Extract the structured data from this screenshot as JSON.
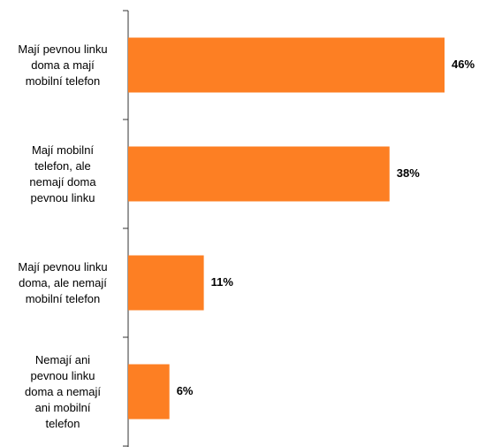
{
  "chart_data": {
    "type": "bar",
    "orientation": "horizontal",
    "categories": [
      "Mají pevnou linku\ndoma a mají\nmobilní telefon",
      "Mají mobilní\ntelefon, ale\nnemají doma\npevnou linku",
      "Mají pevnou linku\ndoma, ale nemají\nmobilní telefon",
      "Nemají ani\npevnou linku\ndoma a nemají\nani mobilní\ntelefon"
    ],
    "values": [
      46,
      38,
      11,
      6
    ],
    "value_labels": [
      "46%",
      "38%",
      "11%",
      "6%"
    ],
    "color": "#fd7f23"
  }
}
